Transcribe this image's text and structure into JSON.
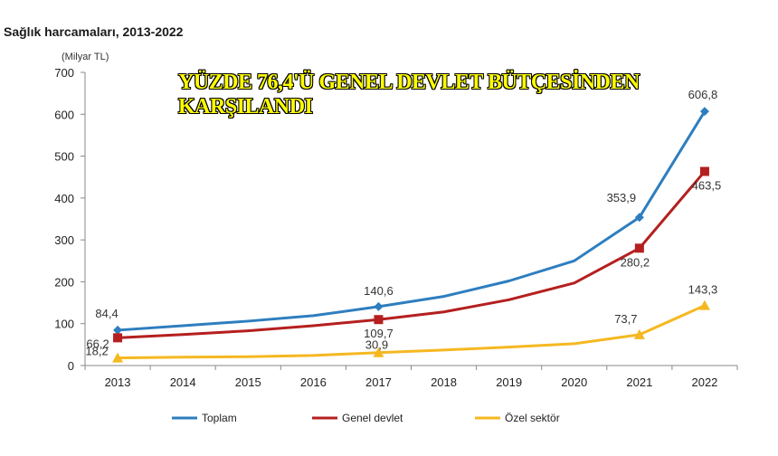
{
  "page": {
    "title": "Sağlık harcamaları, 2013-2022",
    "headline_line1": "YÜZDE 76,4'Ü GENEL DEVLET BÜTÇESİNDEN",
    "headline_line2": "KARŞILANDI"
  },
  "chart_data": {
    "type": "line",
    "title": "Sağlık harcamaları, 2013-2022",
    "ylabel": "(Milyar TL)",
    "xlabel": "",
    "ylim": [
      0,
      700
    ],
    "yticks": [
      0,
      100,
      200,
      300,
      400,
      500,
      600,
      700
    ],
    "categories": [
      "2013",
      "2014",
      "2015",
      "2016",
      "2017",
      "2018",
      "2019",
      "2020",
      "2021",
      "2022"
    ],
    "legend_position": "bottom",
    "series": [
      {
        "name": "Toplam",
        "color": "#2e7ebf",
        "marker": "diamond",
        "values": [
          84.4,
          95,
          106,
          119,
          140.6,
          165,
          202,
          250,
          353.9,
          606.8
        ],
        "labels": {
          "0": "84,4",
          "4": "140,6",
          "8": "353,9",
          "9": "606,8"
        }
      },
      {
        "name": "Genel devlet",
        "color": "#b51f1f",
        "marker": "square",
        "values": [
          66.2,
          74,
          83,
          95,
          109.7,
          128,
          157,
          197,
          280.2,
          463.5
        ],
        "labels": {
          "0": "66,2",
          "4": "109,7",
          "8": "280,2",
          "9": "463,5"
        }
      },
      {
        "name": "Özel sektör",
        "color": "#f5b821",
        "marker": "triangle",
        "values": [
          18.2,
          20,
          21,
          24,
          30.9,
          37,
          44,
          52,
          73.7,
          143.3
        ],
        "labels": {
          "0": "18,2",
          "4": "30,9",
          "8": "73,7",
          "9": "143,3"
        }
      }
    ]
  }
}
